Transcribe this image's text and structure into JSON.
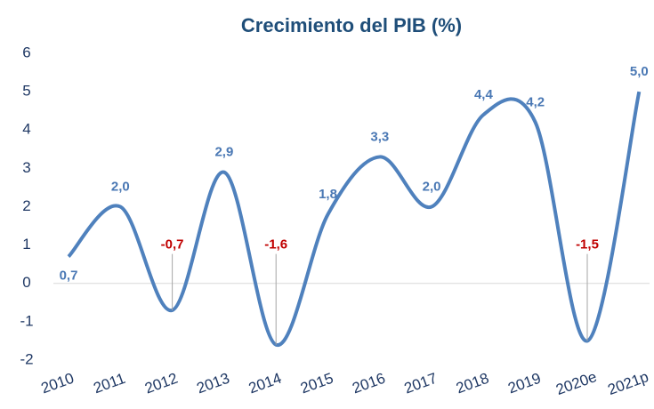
{
  "chart_data": {
    "type": "line",
    "title": "Crecimiento del PIB (%)",
    "categories": [
      "2010",
      "2011",
      "2012",
      "2013",
      "2014",
      "2015",
      "2016",
      "2017",
      "2018",
      "2019",
      "2020e",
      "2021p"
    ],
    "values": [
      0.7,
      2.0,
      -0.7,
      2.9,
      -1.6,
      1.8,
      3.3,
      2.0,
      4.4,
      4.2,
      -1.5,
      5.0
    ],
    "value_labels": [
      "0,7",
      "2,0",
      "-0,7",
      "2,9",
      "-1,6",
      "1,8",
      "3,3",
      "2,0",
      "4,4",
      "4,2",
      "-1,5",
      "5,0"
    ],
    "color": "#4f81bd",
    "label_color": "#4a78b4",
    "negative_label_color": "#c00000",
    "smooth": true,
    "ylim": [
      -2,
      6
    ],
    "yticks": [
      -2,
      -1,
      0,
      1,
      2,
      3,
      4,
      5,
      6
    ]
  }
}
